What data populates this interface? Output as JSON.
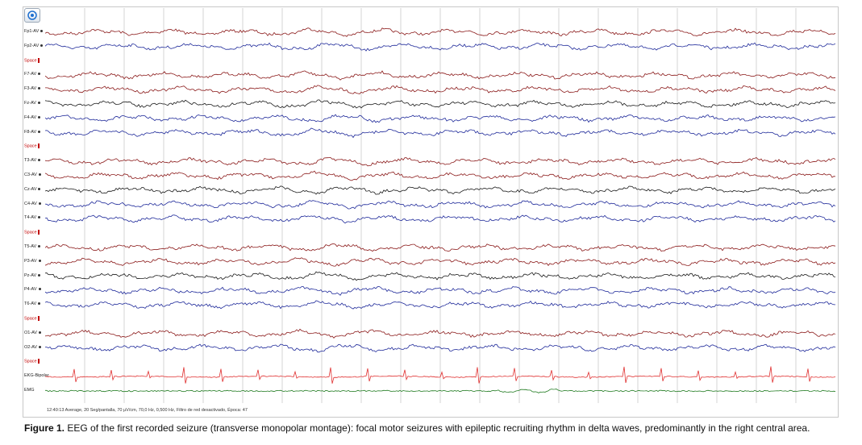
{
  "toolbar": {
    "icon": "target-icon"
  },
  "channels": [
    {
      "label": "Fp1-AV",
      "kind": "ch",
      "color": "#8b1a1a"
    },
    {
      "label": "Fp2-AV",
      "kind": "ch",
      "color": "#1f2a9a"
    },
    {
      "label": "Space",
      "kind": "space",
      "color": "#c00000"
    },
    {
      "label": "F7-AV",
      "kind": "ch",
      "color": "#8b1a1a"
    },
    {
      "label": "F3-AV",
      "kind": "ch",
      "color": "#8b1a1a"
    },
    {
      "label": "Fz-AV",
      "kind": "ch",
      "color": "#1a1a1a"
    },
    {
      "label": "F4-AV",
      "kind": "ch",
      "color": "#1f2a9a"
    },
    {
      "label": "F8-AV",
      "kind": "ch",
      "color": "#1f2a9a"
    },
    {
      "label": "Space",
      "kind": "space",
      "color": "#c00000"
    },
    {
      "label": "T3-AV",
      "kind": "ch",
      "color": "#8b1a1a"
    },
    {
      "label": "C3-AV",
      "kind": "ch",
      "color": "#8b1a1a"
    },
    {
      "label": "Cz-AV",
      "kind": "ch",
      "color": "#1a1a1a"
    },
    {
      "label": "C4-AV",
      "kind": "ch",
      "color": "#1f2a9a"
    },
    {
      "label": "T4-AV",
      "kind": "ch",
      "color": "#1f2a9a"
    },
    {
      "label": "Space",
      "kind": "space",
      "color": "#c00000"
    },
    {
      "label": "T5-AV",
      "kind": "ch",
      "color": "#8b1a1a"
    },
    {
      "label": "P3-AV",
      "kind": "ch",
      "color": "#8b1a1a"
    },
    {
      "label": "Pz-AV",
      "kind": "ch",
      "color": "#1a1a1a"
    },
    {
      "label": "P4-AV",
      "kind": "ch",
      "color": "#1f2a9a"
    },
    {
      "label": "T6-AV",
      "kind": "ch",
      "color": "#1f2a9a"
    },
    {
      "label": "Space",
      "kind": "space",
      "color": "#c00000"
    },
    {
      "label": "O1-AV",
      "kind": "ch",
      "color": "#8b1a1a"
    },
    {
      "label": "O2-AV",
      "kind": "ch",
      "color": "#1f2a9a"
    },
    {
      "label": "Space",
      "kind": "space",
      "color": "#c00000"
    },
    {
      "label": "EKG-Bipolar",
      "kind": "ekg",
      "color": "#e03030"
    },
    {
      "label": "EMG",
      "kind": "emg",
      "color": "#1f7a1f"
    }
  ],
  "status_bar": "12:40:13 Average, 20 Seg/pantalla, 70 µV/cm, 70,0 Hz, 0,500 Hz, Filtro de red desactivado, Época: 47",
  "caption": {
    "label": "Figure 1.",
    "text": " EEG of the first recorded seizure (transverse monopolar montage): focal motor seizures with epileptic recruiting rhythm in delta waves, predominantly in the right central area."
  },
  "colors": {
    "grid": "#c9c9c9",
    "red": "#8b1a1a",
    "blue": "#1f2a9a",
    "black": "#1a1a1a",
    "ekg": "#e03030",
    "emg": "#1f7a1f"
  }
}
